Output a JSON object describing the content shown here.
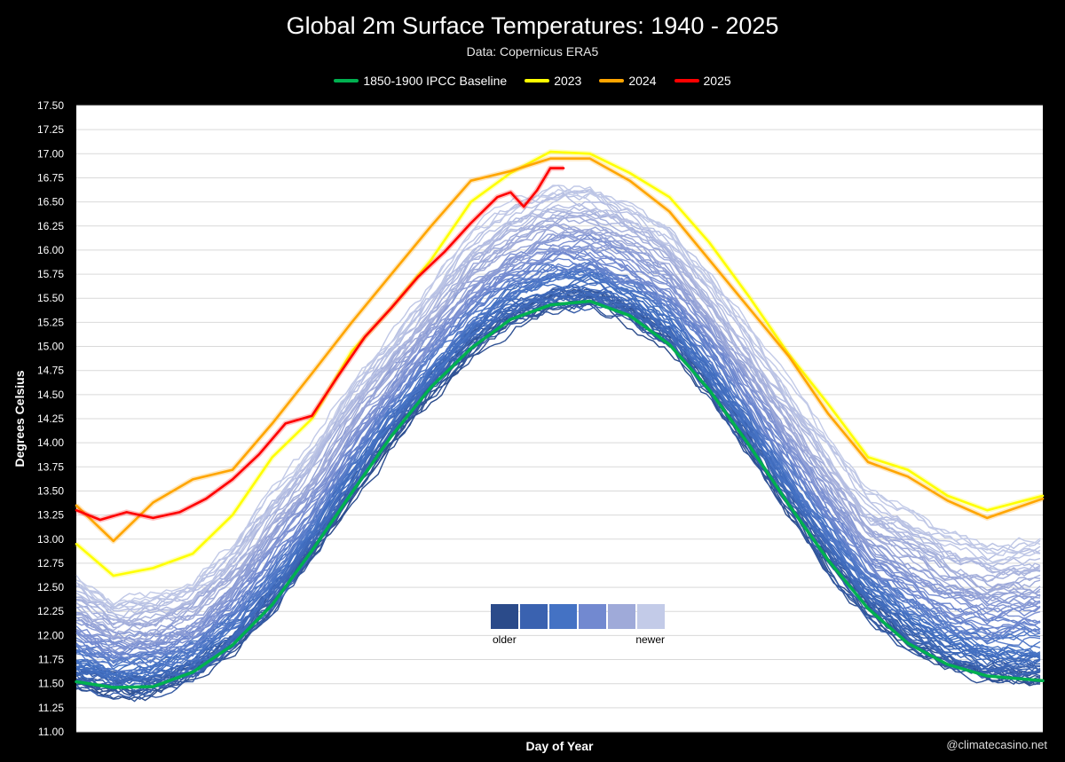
{
  "header": {
    "title": "Global 2m Surface Temperatures: 1940 - 2025",
    "subtitle": "Data: Copernicus ERA5"
  },
  "legend": [
    {
      "label": "1850-1900 IPCC Baseline",
      "color": "#00b050"
    },
    {
      "label": "2023",
      "color": "#ffff00"
    },
    {
      "label": "2024",
      "color": "#ffa500"
    },
    {
      "label": "2025",
      "color": "#ff0000"
    }
  ],
  "gradient_legend": {
    "older_label": "older",
    "newer_label": "newer",
    "colors": [
      "#2b4b8a",
      "#3a62b0",
      "#4472c4",
      "#7289d0",
      "#9faad9",
      "#c3cbe8"
    ]
  },
  "credit": "@climatecasino.net",
  "chart_data": {
    "type": "line",
    "title": "Global 2m Surface Temperatures: 1940 - 2025",
    "subtitle": "Data: Copernicus ERA5",
    "xlabel": "Day of Year",
    "ylabel": "Degrees Celsius",
    "xlim": [
      1,
      366
    ],
    "ylim": [
      11.0,
      17.5
    ],
    "y_ticks": [
      "11.00",
      "11.25",
      "11.50",
      "11.75",
      "12.00",
      "12.25",
      "12.50",
      "12.75",
      "13.00",
      "13.25",
      "13.50",
      "13.75",
      "14.00",
      "14.25",
      "14.50",
      "14.75",
      "15.00",
      "15.25",
      "15.50",
      "15.75",
      "16.00",
      "16.25",
      "16.50",
      "16.75",
      "17.00",
      "17.25",
      "17.50"
    ],
    "grid": "horizontal",
    "legend_position": "top-center",
    "series": [
      {
        "name": "1850-1900 IPCC Baseline",
        "color": "#00b050",
        "x": [
          1,
          15,
          30,
          45,
          60,
          75,
          90,
          105,
          120,
          135,
          150,
          165,
          180,
          195,
          210,
          225,
          240,
          255,
          270,
          285,
          300,
          315,
          330,
          345,
          366
        ],
        "y": [
          11.52,
          11.46,
          11.47,
          11.62,
          11.9,
          12.32,
          12.88,
          13.48,
          14.07,
          14.58,
          14.98,
          15.28,
          15.43,
          15.47,
          15.32,
          15.02,
          14.55,
          13.98,
          13.36,
          12.78,
          12.28,
          11.92,
          11.7,
          11.58,
          11.53
        ]
      },
      {
        "name": "2023",
        "color": "#ffff00",
        "x": [
          1,
          15,
          30,
          45,
          60,
          75,
          90,
          105,
          120,
          135,
          150,
          165,
          180,
          195,
          210,
          225,
          240,
          255,
          270,
          285,
          300,
          315,
          330,
          345,
          366
        ],
        "y": [
          12.95,
          12.62,
          12.7,
          12.85,
          13.25,
          13.85,
          14.25,
          14.95,
          15.4,
          15.9,
          16.5,
          16.8,
          17.02,
          17.0,
          16.8,
          16.55,
          16.08,
          15.52,
          14.92,
          14.4,
          13.85,
          13.72,
          13.45,
          13.3,
          13.45
        ]
      },
      {
        "name": "2024",
        "color": "#ffa500",
        "x": [
          1,
          15,
          30,
          45,
          60,
          75,
          90,
          105,
          120,
          135,
          150,
          165,
          180,
          195,
          210,
          225,
          240,
          255,
          270,
          285,
          300,
          315,
          330,
          345,
          366
        ],
        "y": [
          13.35,
          12.98,
          13.38,
          13.62,
          13.72,
          14.2,
          14.72,
          15.25,
          15.75,
          16.25,
          16.72,
          16.82,
          16.95,
          16.95,
          16.72,
          16.4,
          15.9,
          15.4,
          14.9,
          14.3,
          13.8,
          13.65,
          13.4,
          13.22,
          13.42
        ]
      },
      {
        "name": "2025",
        "color": "#ff0000",
        "x": [
          1,
          10,
          20,
          30,
          40,
          50,
          60,
          70,
          80,
          90,
          100,
          110,
          120,
          130,
          140,
          150,
          160,
          165,
          170,
          175,
          180,
          185
        ],
        "y": [
          13.3,
          13.2,
          13.28,
          13.22,
          13.28,
          13.42,
          13.62,
          13.88,
          14.2,
          14.28,
          14.7,
          15.1,
          15.4,
          15.72,
          15.98,
          16.28,
          16.55,
          16.6,
          16.45,
          16.62,
          16.85,
          16.85
        ]
      }
    ]
  }
}
